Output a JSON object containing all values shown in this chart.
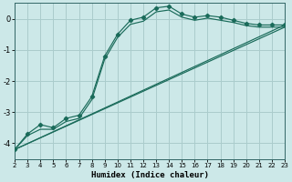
{
  "xlabel": "Humidex (Indice chaleur)",
  "bg_color": "#cce8e8",
  "grid_color": "#aacccc",
  "line_color": "#1a6b5a",
  "xlim": [
    2,
    23
  ],
  "ylim": [
    -4.5,
    0.5
  ],
  "yticks": [
    0,
    -1,
    -2,
    -3,
    -4
  ],
  "xticks": [
    2,
    3,
    4,
    5,
    6,
    7,
    8,
    9,
    10,
    11,
    12,
    13,
    14,
    15,
    16,
    17,
    18,
    19,
    20,
    21,
    22,
    23
  ],
  "series1_x": [
    2,
    3,
    4,
    5,
    6,
    7,
    8,
    9,
    10,
    11,
    12,
    13,
    14,
    15,
    16,
    17,
    18,
    19,
    20,
    21,
    22,
    23
  ],
  "series1_y": [
    -4.2,
    -3.7,
    -3.4,
    -3.5,
    -3.2,
    -3.1,
    -2.5,
    -1.2,
    -0.5,
    -0.05,
    0.05,
    0.35,
    0.4,
    0.15,
    0.05,
    0.1,
    0.05,
    -0.05,
    -0.15,
    -0.2,
    -0.2,
    -0.2
  ],
  "series2_x": [
    2,
    3,
    4,
    5,
    6,
    7,
    8,
    9,
    10,
    11,
    12,
    13,
    14,
    15,
    16,
    17,
    18,
    19,
    20,
    21,
    22,
    23
  ],
  "series2_y": [
    -4.2,
    -3.75,
    -3.55,
    -3.55,
    -3.3,
    -3.2,
    -2.6,
    -1.3,
    -0.6,
    -0.18,
    -0.08,
    0.22,
    0.28,
    0.05,
    -0.05,
    0.02,
    -0.05,
    -0.12,
    -0.22,
    -0.27,
    -0.27,
    -0.27
  ],
  "line1_x": [
    2,
    23
  ],
  "line1_y": [
    -4.2,
    -0.2
  ],
  "line2_x": [
    2,
    23
  ],
  "line2_y": [
    -4.2,
    -0.27
  ]
}
